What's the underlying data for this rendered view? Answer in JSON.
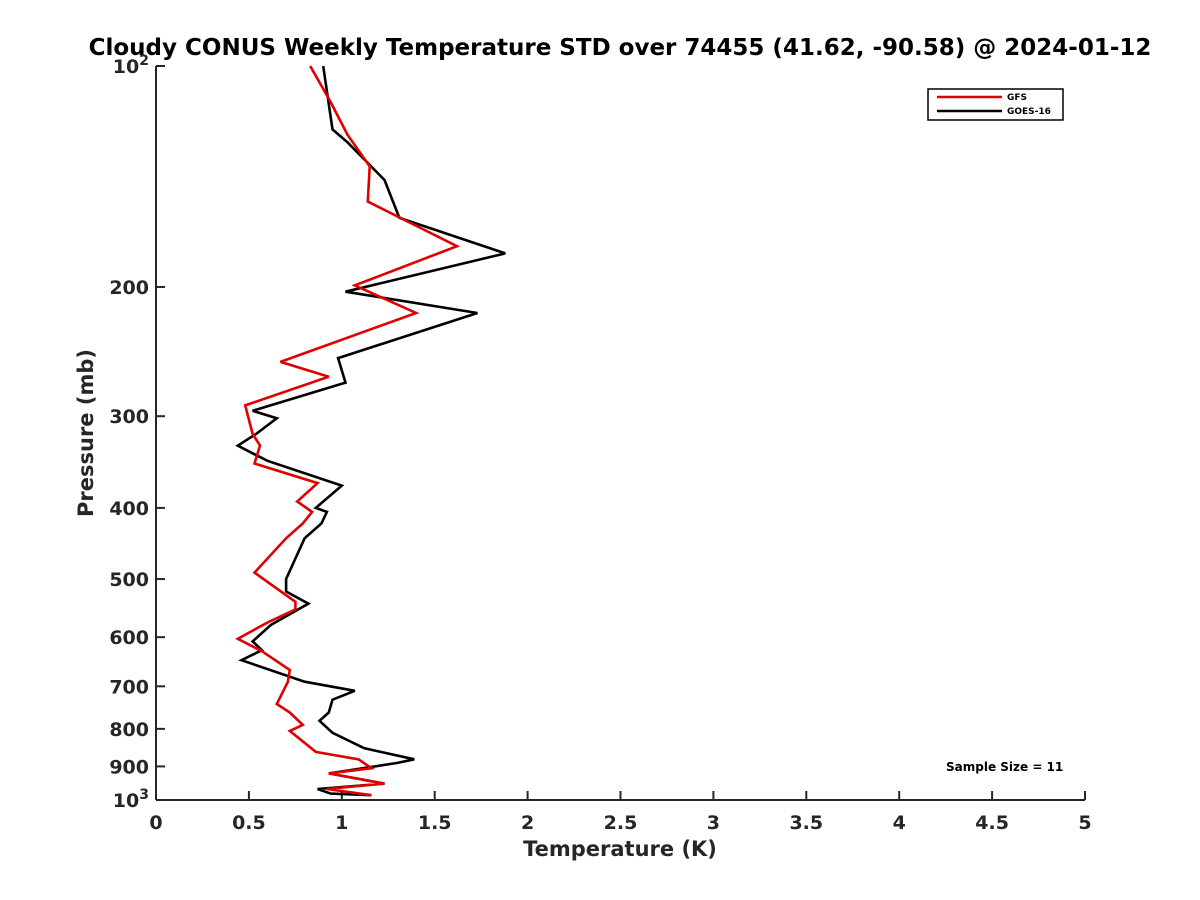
{
  "chart_data": {
    "type": "line",
    "title": "Cloudy CONUS Weekly Temperature STD over 74455 (41.62, -90.58) @ 2024-01-12",
    "xlabel": "Temperature (K)",
    "ylabel": "Pressure (mb)",
    "xlim": [
      0,
      5
    ],
    "ylim": [
      100,
      1000
    ],
    "y_scale": "log",
    "y_reversed": true,
    "grid": false,
    "legend_position": "top-right",
    "x_ticks": [
      "0",
      "0.5",
      "1",
      "1.5",
      "2",
      "2.5",
      "3",
      "3.5",
      "4",
      "4.5",
      "5"
    ],
    "x_tick_values": [
      0,
      0.5,
      1,
      1.5,
      2,
      2.5,
      3,
      3.5,
      4,
      4.5,
      5
    ],
    "y_ticks": [
      {
        "value": 100,
        "base": "10",
        "exp": "2"
      },
      {
        "value": 200,
        "label": "200"
      },
      {
        "value": 300,
        "label": "300"
      },
      {
        "value": 400,
        "label": "400"
      },
      {
        "value": 500,
        "label": "500"
      },
      {
        "value": 600,
        "label": "600"
      },
      {
        "value": 700,
        "label": "700"
      },
      {
        "value": 800,
        "label": "800"
      },
      {
        "value": 900,
        "label": "900"
      },
      {
        "value": 1000,
        "base": "10",
        "exp": "3"
      }
    ],
    "series": [
      {
        "name": "GFS",
        "color": "#e00000",
        "points": [
          [
            0.83,
            100
          ],
          [
            0.94,
            112
          ],
          [
            1.03,
            124
          ],
          [
            1.15,
            137
          ],
          [
            1.14,
            153
          ],
          [
            1.62,
            176
          ],
          [
            1.07,
            199
          ],
          [
            1.4,
            217
          ],
          [
            0.67,
            253
          ],
          [
            0.93,
            265
          ],
          [
            0.48,
            290
          ],
          [
            0.52,
            317
          ],
          [
            0.56,
            329
          ],
          [
            0.53,
            348
          ],
          [
            0.87,
            370
          ],
          [
            0.76,
            392
          ],
          [
            0.84,
            405
          ],
          [
            0.79,
            420
          ],
          [
            0.7,
            440
          ],
          [
            0.53,
            490
          ],
          [
            0.75,
            537
          ],
          [
            0.75,
            550
          ],
          [
            0.6,
            573
          ],
          [
            0.44,
            603
          ],
          [
            0.57,
            627
          ],
          [
            0.72,
            665
          ],
          [
            0.71,
            690
          ],
          [
            0.65,
            740
          ],
          [
            0.72,
            760
          ],
          [
            0.79,
            790
          ],
          [
            0.72,
            805
          ],
          [
            0.86,
            860
          ],
          [
            1.09,
            880
          ],
          [
            1.16,
            905
          ],
          [
            0.93,
            920
          ],
          [
            1.23,
            950
          ],
          [
            0.92,
            966
          ],
          [
            1.16,
            985
          ]
        ]
      },
      {
        "name": "GOES-16",
        "color": "#000000",
        "points": [
          [
            0.9,
            100
          ],
          [
            0.95,
            122
          ],
          [
            1.03,
            127
          ],
          [
            1.23,
            143
          ],
          [
            1.31,
            161
          ],
          [
            1.88,
            180
          ],
          [
            1.02,
            203
          ],
          [
            1.73,
            217
          ],
          [
            0.98,
            250
          ],
          [
            1.02,
            270
          ],
          [
            0.52,
            295
          ],
          [
            0.65,
            302
          ],
          [
            0.54,
            317
          ],
          [
            0.44,
            329
          ],
          [
            0.52,
            337
          ],
          [
            0.6,
            345
          ],
          [
            1.0,
            373
          ],
          [
            0.86,
            400
          ],
          [
            0.92,
            405
          ],
          [
            0.89,
            420
          ],
          [
            0.8,
            440
          ],
          [
            0.7,
            500
          ],
          [
            0.7,
            520
          ],
          [
            0.82,
            540
          ],
          [
            0.62,
            577
          ],
          [
            0.52,
            608
          ],
          [
            0.57,
            625
          ],
          [
            0.46,
            645
          ],
          [
            0.8,
            690
          ],
          [
            1.07,
            710
          ],
          [
            0.95,
            730
          ],
          [
            0.93,
            760
          ],
          [
            0.88,
            780
          ],
          [
            0.95,
            810
          ],
          [
            1.12,
            850
          ],
          [
            1.39,
            880
          ],
          [
            1.3,
            890
          ],
          [
            0.93,
            920
          ],
          [
            1.23,
            950
          ],
          [
            0.87,
            966
          ],
          [
            0.94,
            980
          ],
          [
            1.16,
            985
          ]
        ]
      }
    ],
    "annotations": {
      "sample_size": "Sample Size = 11"
    }
  }
}
